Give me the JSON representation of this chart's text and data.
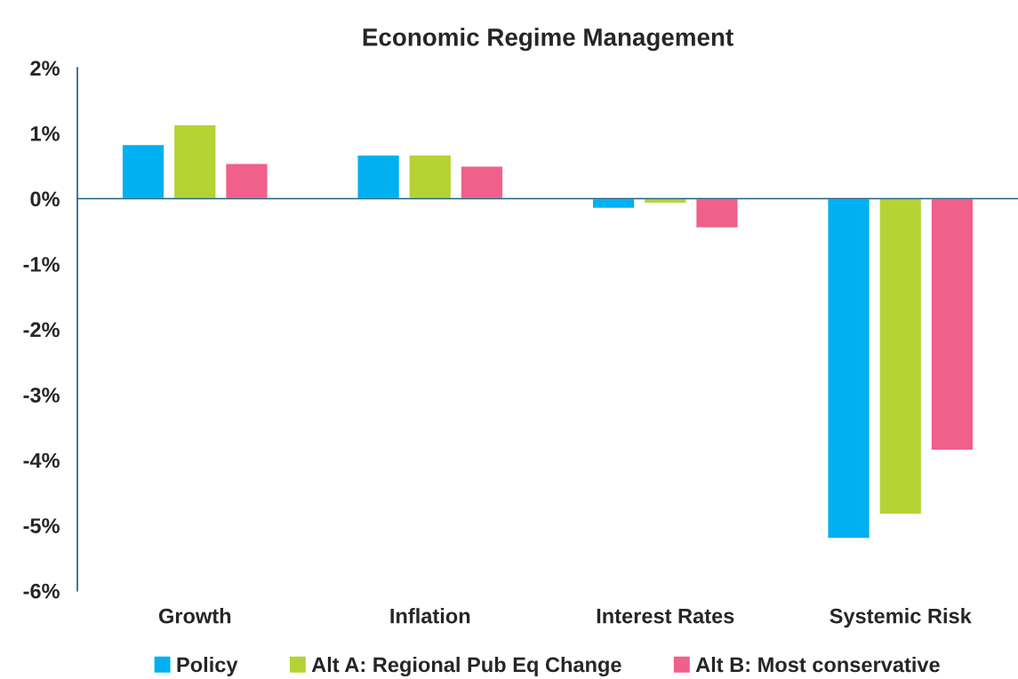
{
  "chart_data": {
    "type": "bar",
    "title": "Economic Regime Management",
    "categories": [
      "Growth",
      "Inflation",
      "Interest Rates",
      "Systemic Risk"
    ],
    "series": [
      {
        "name": "Policy",
        "color": "#00b0f0",
        "values": [
          0.83,
          0.67,
          -0.15,
          -5.2
        ]
      },
      {
        "name": "Alt A: Regional Pub Eq Change",
        "color": "#b5d334",
        "values": [
          1.13,
          0.67,
          -0.07,
          -4.83
        ]
      },
      {
        "name": "Alt B: Most conservative",
        "color": "#f0608a",
        "values": [
          0.54,
          0.5,
          -0.45,
          -3.85
        ]
      }
    ],
    "ylim": [
      -6,
      2
    ],
    "yticks": [
      {
        "value": -6,
        "label": "-6%"
      },
      {
        "value": -5,
        "label": "-5%"
      },
      {
        "value": -4,
        "label": "-4%"
      },
      {
        "value": -3,
        "label": "-3%"
      },
      {
        "value": -2,
        "label": "-2%"
      },
      {
        "value": -1,
        "label": "-1%"
      },
      {
        "value": 0,
        "label": "0%"
      },
      {
        "value": 1,
        "label": "1%"
      },
      {
        "value": 2,
        "label": "2%"
      }
    ],
    "ref_lines": [
      {
        "axis": "y",
        "value": 0,
        "color": "#1f6080"
      }
    ],
    "grid": false,
    "legend": "bottom"
  }
}
